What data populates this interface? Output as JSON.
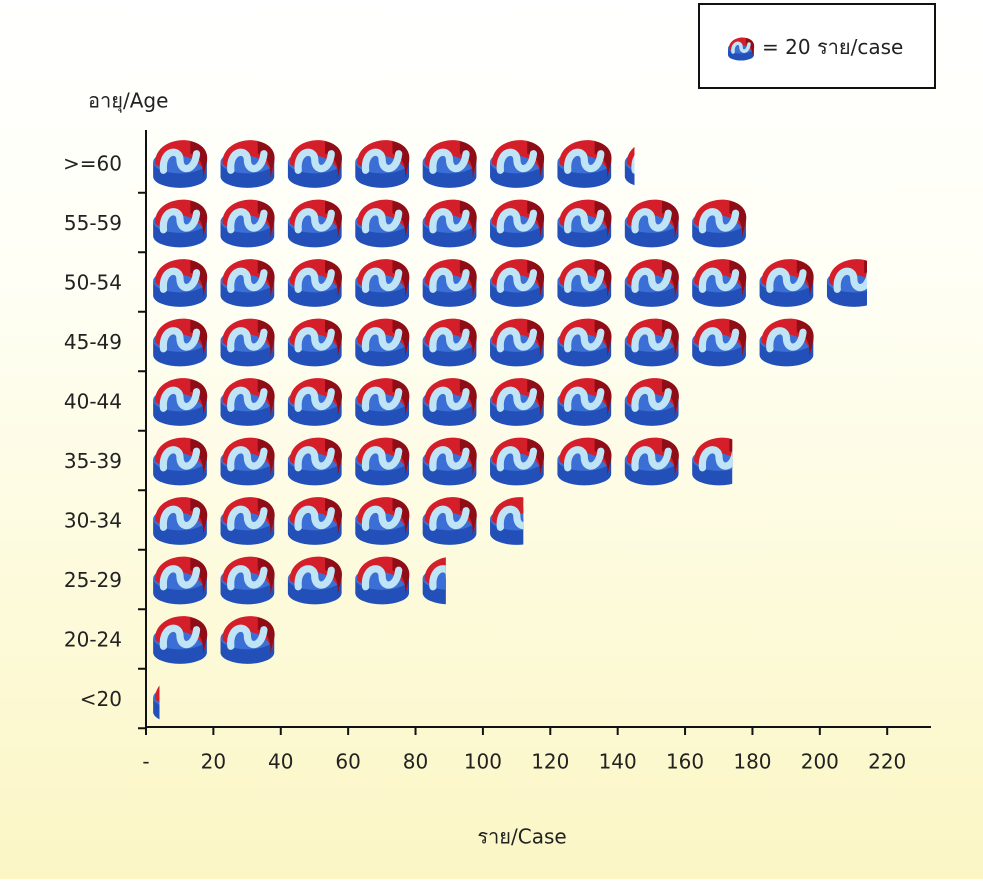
{
  "chart_data": {
    "type": "pictograph",
    "y_label": "อายุ/Age",
    "x_label": "ราย/Case",
    "legend": {
      "prefix": "=",
      "unit": 20,
      "suffix": "ราย/case"
    },
    "categories": [
      ">=60",
      "55-59",
      "50-54",
      "45-49",
      "40-44",
      "35-39",
      "30-34",
      "25-29",
      "20-24",
      "<20"
    ],
    "values": [
      145,
      180,
      214,
      200,
      160,
      174,
      112,
      89,
      40,
      4
    ],
    "xlim": [
      0,
      233
    ],
    "xticks": [
      {
        "value": 0,
        "label": "-"
      },
      20,
      40,
      60,
      80,
      100,
      120,
      140,
      160,
      180,
      200,
      220
    ]
  }
}
